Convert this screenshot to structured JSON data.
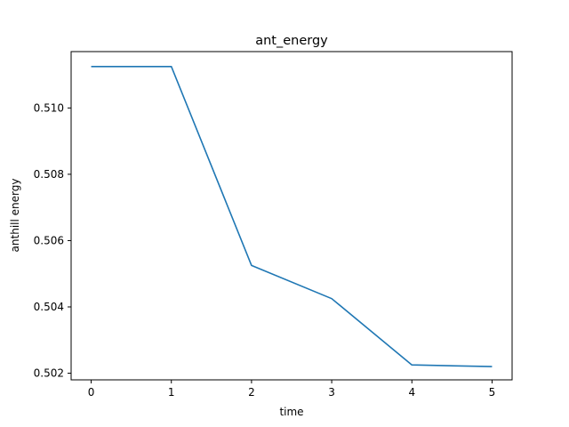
{
  "chart_data": {
    "type": "line",
    "title": "ant_energy",
    "xlabel": "time",
    "ylabel": "anthill energy",
    "x": [
      0,
      1,
      2,
      3,
      4,
      5
    ],
    "series": [
      {
        "values": [
          0.51125,
          0.51125,
          0.50525,
          0.50425,
          0.50225,
          0.5022
        ],
        "color": "#1f77b4"
      }
    ],
    "xlim": [
      -0.25,
      5.25
    ],
    "ylim": [
      0.5018,
      0.5117
    ],
    "xticks": [
      0,
      1,
      2,
      3,
      4,
      5
    ],
    "xtick_labels": [
      "0",
      "1",
      "2",
      "3",
      "4",
      "5"
    ],
    "yticks": [
      0.502,
      0.504,
      0.506,
      0.508,
      0.51
    ],
    "ytick_labels": [
      "0.502",
      "0.504",
      "0.506",
      "0.508",
      "0.510"
    ],
    "grid": false,
    "legend": "none"
  }
}
